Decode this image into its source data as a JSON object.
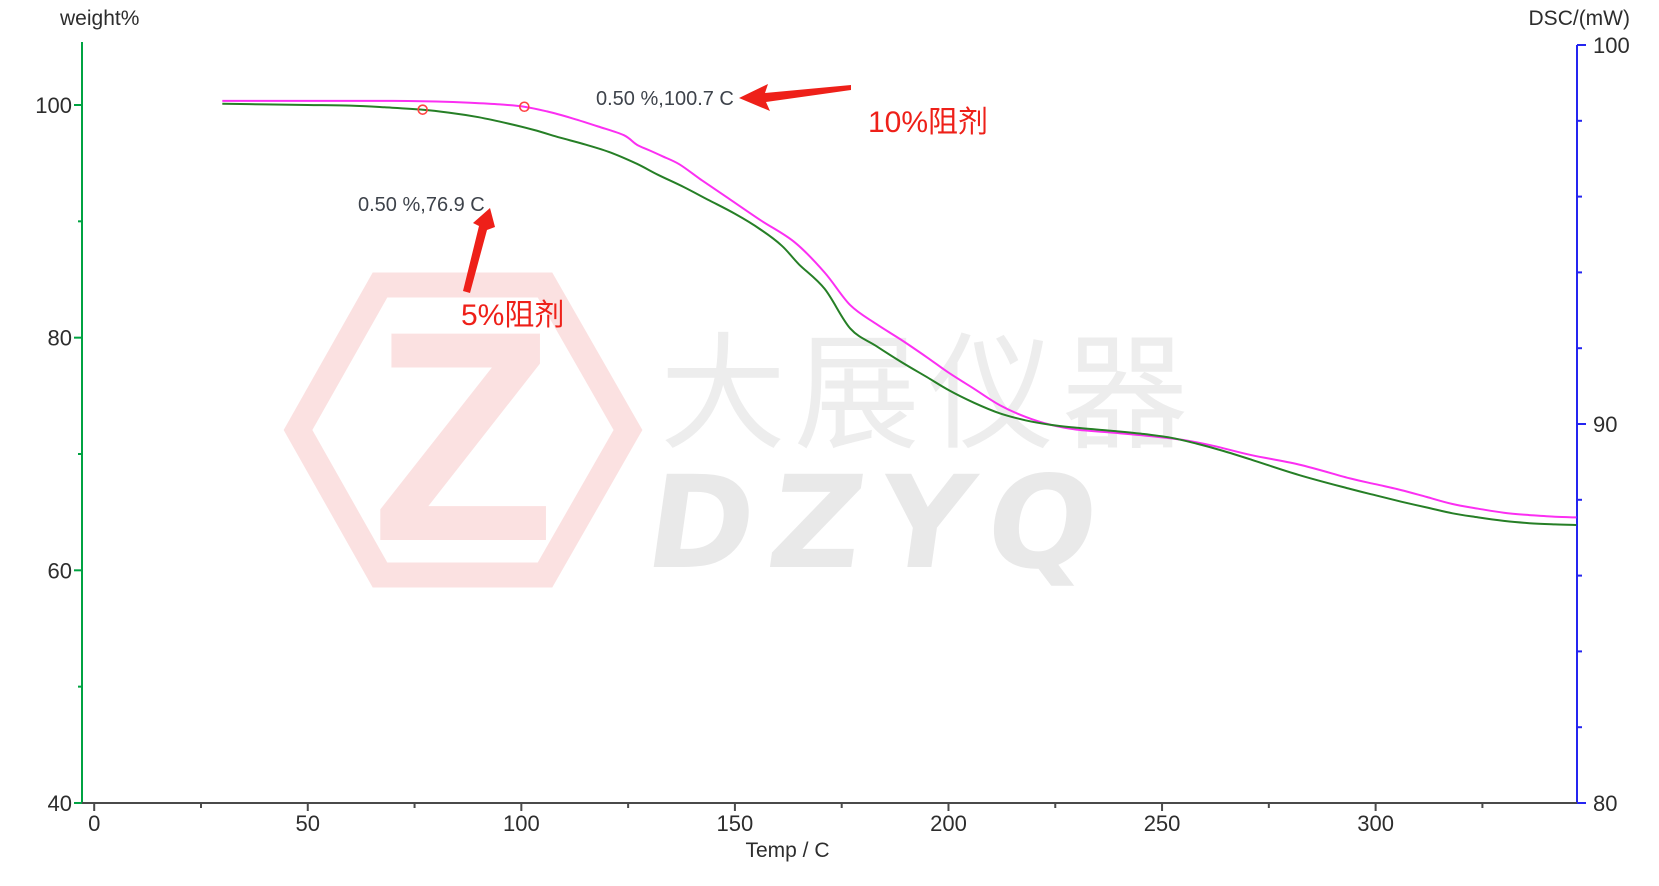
{
  "chart_data": {
    "type": "line",
    "title": "",
    "x_axis": {
      "label": "Temp / C",
      "min": 0,
      "max": 347,
      "major_ticks": [
        0,
        50,
        100,
        150,
        200,
        250,
        300
      ],
      "minor_ticks": [
        25,
        75,
        125,
        175,
        225,
        275,
        325
      ],
      "color": "#4a4a4a",
      "tick_label_color": "#2d2d2d"
    },
    "left_y_axis": {
      "label": "weight%",
      "min": 40,
      "max": 105.4,
      "major_ticks": [
        100,
        80,
        60,
        40
      ],
      "minor_ticks": [
        90,
        70,
        50
      ],
      "color": "#00a342",
      "tick_label_color": "#2d2d2d"
    },
    "right_y_axis": {
      "label": "DSC/(mW)",
      "min": 80,
      "max": 100,
      "major_ticks": [
        100,
        90,
        80
      ],
      "minor_ticks": [
        98,
        96,
        94,
        92,
        88,
        86,
        84,
        82
      ],
      "color": "#2525f0",
      "tick_label_color": "#2d2d2d"
    },
    "grid": false,
    "legend": "none",
    "series": [
      {
        "name": "10%阻剂",
        "color": "#fb2ff2",
        "points": [
          [
            30,
            100.35
          ],
          [
            40,
            100.35
          ],
          [
            50,
            100.35
          ],
          [
            60,
            100.35
          ],
          [
            70,
            100.35
          ],
          [
            80,
            100.3
          ],
          [
            88,
            100.2
          ],
          [
            95,
            100.05
          ],
          [
            100.7,
            99.85
          ],
          [
            106,
            99.45
          ],
          [
            112,
            98.85
          ],
          [
            118,
            98.15
          ],
          [
            124,
            97.4
          ],
          [
            127,
            96.6
          ],
          [
            130,
            96.1
          ],
          [
            133,
            95.6
          ],
          [
            137,
            94.9
          ],
          [
            142,
            93.6
          ],
          [
            148,
            92.1
          ],
          [
            156,
            90.1
          ],
          [
            164,
            88.2
          ],
          [
            171,
            85.6
          ],
          [
            177,
            82.8
          ],
          [
            183,
            81.2
          ],
          [
            189,
            79.8
          ],
          [
            195,
            78.3
          ],
          [
            200,
            77.0
          ],
          [
            206,
            75.6
          ],
          [
            212,
            74.2
          ],
          [
            218,
            73.2
          ],
          [
            224,
            72.5
          ],
          [
            230,
            72.1
          ],
          [
            238,
            71.85
          ],
          [
            247,
            71.55
          ],
          [
            255,
            71.2
          ],
          [
            262,
            70.7
          ],
          [
            271,
            69.9
          ],
          [
            282,
            69.1
          ],
          [
            294,
            67.9
          ],
          [
            300,
            67.4
          ],
          [
            306,
            66.9
          ],
          [
            312,
            66.3
          ],
          [
            318,
            65.7
          ],
          [
            324,
            65.3
          ],
          [
            330,
            64.95
          ],
          [
            336,
            64.75
          ],
          [
            342,
            64.6
          ],
          [
            347,
            64.55
          ]
        ]
      },
      {
        "name": "5%阻剂",
        "color": "#267f26",
        "points": [
          [
            30,
            100.1
          ],
          [
            40,
            100.05
          ],
          [
            50,
            100.0
          ],
          [
            60,
            99.95
          ],
          [
            68,
            99.8
          ],
          [
            76.9,
            99.6
          ],
          [
            83,
            99.35
          ],
          [
            90,
            98.95
          ],
          [
            97,
            98.4
          ],
          [
            103,
            97.85
          ],
          [
            109,
            97.2
          ],
          [
            115,
            96.6
          ],
          [
            121,
            95.9
          ],
          [
            127,
            94.95
          ],
          [
            132,
            94.0
          ],
          [
            138,
            92.95
          ],
          [
            144,
            91.8
          ],
          [
            150,
            90.65
          ],
          [
            156,
            89.3
          ],
          [
            161,
            87.9
          ],
          [
            165,
            86.3
          ],
          [
            171,
            84.2
          ],
          [
            177,
            80.8
          ],
          [
            183,
            79.3
          ],
          [
            189,
            77.9
          ],
          [
            195,
            76.6
          ],
          [
            200,
            75.5
          ],
          [
            206,
            74.4
          ],
          [
            212,
            73.5
          ],
          [
            218,
            72.9
          ],
          [
            224,
            72.5
          ],
          [
            230,
            72.25
          ],
          [
            238,
            72.0
          ],
          [
            245,
            71.75
          ],
          [
            252,
            71.4
          ],
          [
            258,
            70.9
          ],
          [
            264,
            70.3
          ],
          [
            271,
            69.5
          ],
          [
            282,
            68.2
          ],
          [
            294,
            67.0
          ],
          [
            300,
            66.45
          ],
          [
            306,
            65.9
          ],
          [
            312,
            65.4
          ],
          [
            318,
            64.9
          ],
          [
            324,
            64.55
          ],
          [
            330,
            64.25
          ],
          [
            336,
            64.05
          ],
          [
            342,
            63.95
          ],
          [
            347,
            63.9
          ]
        ]
      }
    ],
    "point_markers": [
      {
        "series": "5%阻剂",
        "temp": 76.9,
        "weight": 99.6
      },
      {
        "series": "10%阻剂",
        "temp": 100.7,
        "weight": 99.85
      }
    ],
    "point_marker_color": "#ff4343"
  },
  "annotations": {
    "ann_10": {
      "text": "0.50 %,100.7 C"
    },
    "ann_5": {
      "text": "0.50 %,76.9 C"
    },
    "label_10": {
      "text": "10%阻剂"
    },
    "label_5": {
      "text": "5%阻剂"
    },
    "text_color": "#3e434b",
    "arrow_color": "#ee2019"
  },
  "watermark": {
    "cjk_text": "大展仪器",
    "latin_text": "DZYQ",
    "logo_letter": "Z",
    "cjk_color": "#ededed",
    "latin_color": "#e9e9e9",
    "logo_color": "#fbe1e1"
  }
}
